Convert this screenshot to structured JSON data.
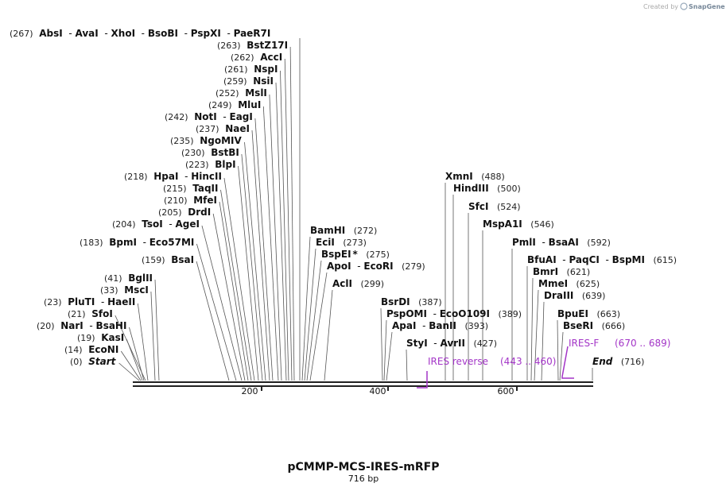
{
  "credit": "Created by",
  "brand": "SnapGene",
  "title": "pCMMP-MCS-IRES-mRFP",
  "length_label": "716 bp",
  "scale": {
    "start": 0,
    "end": 716,
    "ticks": [
      "200",
      "400",
      "600"
    ]
  },
  "labels": [
    {
      "id": "l1",
      "pos": "(267)",
      "names": [
        "AbsI",
        "AvaI",
        "XhoI",
        "BsoBI",
        "PspXI",
        "PaeR7I"
      ]
    },
    {
      "id": "l2",
      "pos": "(263)",
      "names": [
        "BstZ17I"
      ]
    },
    {
      "id": "l3",
      "pos": "(262)",
      "names": [
        "AccI"
      ]
    },
    {
      "id": "l4",
      "pos": "(261)",
      "names": [
        "NspI"
      ]
    },
    {
      "id": "l5",
      "pos": "(259)",
      "names": [
        "NsiI"
      ]
    },
    {
      "id": "l6",
      "pos": "(252)",
      "names": [
        "MslI"
      ]
    },
    {
      "id": "l7",
      "pos": "(249)",
      "names": [
        "MluI"
      ]
    },
    {
      "id": "l8",
      "pos": "(242)",
      "names": [
        "NotI",
        "EagI"
      ]
    },
    {
      "id": "l9",
      "pos": "(237)",
      "names": [
        "NaeI"
      ]
    },
    {
      "id": "l10",
      "pos": "(235)",
      "names": [
        "NgoMIV"
      ]
    },
    {
      "id": "l11",
      "pos": "(230)",
      "names": [
        "BstBI"
      ]
    },
    {
      "id": "l12",
      "pos": "(223)",
      "names": [
        "BlpI"
      ]
    },
    {
      "id": "l13",
      "pos": "(218)",
      "names": [
        "HpaI",
        "HincII"
      ]
    },
    {
      "id": "l14",
      "pos": "(215)",
      "names": [
        "TaqII"
      ]
    },
    {
      "id": "l15",
      "pos": "(210)",
      "names": [
        "MfeI"
      ]
    },
    {
      "id": "l16",
      "pos": "(205)",
      "names": [
        "DrdI"
      ]
    },
    {
      "id": "l17",
      "pos": "(204)",
      "names": [
        "TsoI",
        "AgeI"
      ]
    },
    {
      "id": "l18",
      "pos": "(183)",
      "names": [
        "BpmI",
        "Eco57MI"
      ]
    },
    {
      "id": "l19",
      "pos": "(159)",
      "names": [
        "BsaI"
      ]
    },
    {
      "id": "l20",
      "pos": "(41)",
      "names": [
        "BglII"
      ]
    },
    {
      "id": "l21",
      "pos": "(33)",
      "names": [
        "MscI"
      ]
    },
    {
      "id": "l22",
      "pos": "(23)",
      "names": [
        "PluTI",
        "HaeII"
      ]
    },
    {
      "id": "l23",
      "pos": "(21)",
      "names": [
        "SfoI"
      ]
    },
    {
      "id": "l24",
      "pos": "(20)",
      "names": [
        "NarI",
        "BsaHI"
      ]
    },
    {
      "id": "l25",
      "pos": "(19)",
      "names": [
        "KasI"
      ]
    },
    {
      "id": "l26",
      "pos": "(14)",
      "names": [
        "EcoNI"
      ]
    },
    {
      "id": "l27",
      "pos": "(0)",
      "names": [
        "Start"
      ],
      "italic": true
    },
    {
      "id": "r1",
      "pos": "(272)",
      "names": [
        "BamHI"
      ]
    },
    {
      "id": "r2",
      "pos": "(273)",
      "names": [
        "EciI"
      ]
    },
    {
      "id": "r3",
      "pos": "(275)",
      "names": [
        "BspEI"
      ],
      "star": "*"
    },
    {
      "id": "r4",
      "pos": "(279)",
      "names": [
        "ApoI",
        "EcoRI"
      ]
    },
    {
      "id": "r5",
      "pos": "(299)",
      "names": [
        "AclI"
      ]
    },
    {
      "id": "r6",
      "pos": "(387)",
      "names": [
        "BsrDI"
      ]
    },
    {
      "id": "r7",
      "pos": "(389)",
      "names": [
        "PspOMI",
        "EcoO109I"
      ]
    },
    {
      "id": "r8",
      "pos": "(393)",
      "names": [
        "ApaI",
        "BanII"
      ]
    },
    {
      "id": "r9",
      "pos": "(427)",
      "names": [
        "StyI",
        "AvrII"
      ]
    },
    {
      "id": "r10",
      "pos": "(488)",
      "names": [
        "XmnI"
      ]
    },
    {
      "id": "r11",
      "pos": "(500)",
      "names": [
        "HindIII"
      ]
    },
    {
      "id": "r12",
      "pos": "(524)",
      "names": [
        "SfcI"
      ]
    },
    {
      "id": "r13",
      "pos": "(546)",
      "names": [
        "MspA1I"
      ]
    },
    {
      "id": "r14",
      "pos": "(592)",
      "names": [
        "PmlI",
        "BsaAI"
      ]
    },
    {
      "id": "r15",
      "pos": "(615)",
      "names": [
        "BfuAI",
        "PaqCI",
        "BspMI"
      ]
    },
    {
      "id": "r16",
      "pos": "(621)",
      "names": [
        "BmrI"
      ]
    },
    {
      "id": "r17",
      "pos": "(625)",
      "names": [
        "MmeI"
      ]
    },
    {
      "id": "r18",
      "pos": "(639)",
      "names": [
        "DraIII"
      ]
    },
    {
      "id": "r19",
      "pos": "(663)",
      "names": [
        "BpuEI"
      ]
    },
    {
      "id": "r20",
      "pos": "(666)",
      "names": [
        "BseRI"
      ]
    },
    {
      "id": "r21",
      "pos": "(716)",
      "names": [
        "End"
      ],
      "italic": true
    }
  ],
  "primers": [
    {
      "id": "p1",
      "name": "IRES reverse",
      "range": "(443 .. 460)"
    },
    {
      "id": "p2",
      "name": "IRES-F",
      "range": "(670 .. 689)"
    }
  ],
  "colors": {
    "primer": "#a335c7",
    "line": "#555555",
    "backbone": "#222222"
  }
}
